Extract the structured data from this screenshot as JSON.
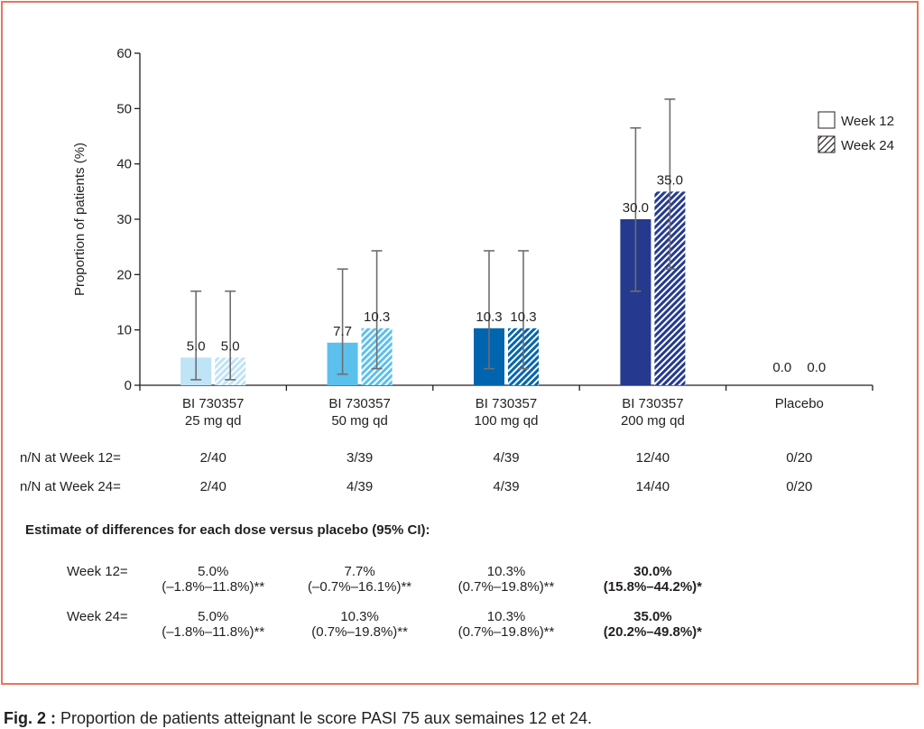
{
  "chart_data": {
    "type": "bar",
    "ylabel": "Proportion of patients (%)",
    "ylim": [
      0,
      60
    ],
    "yticks": [
      0,
      10,
      20,
      30,
      40,
      50,
      60
    ],
    "categories": [
      [
        "BI 730357",
        "25 mg qd"
      ],
      [
        "BI 730357",
        "50 mg qd"
      ],
      [
        "BI 730357",
        "100 mg qd"
      ],
      [
        "BI 730357",
        "200 mg qd"
      ],
      [
        "Placebo",
        ""
      ]
    ],
    "series": [
      {
        "name": "Week 12",
        "pattern": "solid",
        "values": [
          5.0,
          7.7,
          10.3,
          30.0,
          0.0
        ],
        "labels": [
          "5.0",
          "7.7",
          "10.3",
          "30.0",
          "0.0"
        ],
        "ci": [
          [
            1,
            17
          ],
          [
            2,
            21
          ],
          [
            3,
            24.3
          ],
          [
            17,
            46.5
          ],
          null
        ]
      },
      {
        "name": "Week 24",
        "pattern": "hatched",
        "values": [
          5.0,
          10.3,
          10.3,
          35.0,
          0.0
        ],
        "labels": [
          "5.0",
          "10.3",
          "10.3",
          "35.0",
          "0.0"
        ],
        "ci": [
          [
            1,
            17
          ],
          [
            3,
            24.3
          ],
          [
            3,
            24.3
          ],
          [
            21,
            51.7
          ],
          null
        ]
      }
    ],
    "colors": [
      "#bfe3f7",
      "#5cc0ed",
      "#0065ae",
      "#253a8e"
    ],
    "legend_position": "top-right",
    "grid": false
  },
  "table": {
    "rows": [
      {
        "label": "n/N at Week 12=",
        "values": [
          "2/40",
          "3/39",
          "4/39",
          "12/40",
          "0/20"
        ]
      },
      {
        "label": "n/N at Week 24=",
        "values": [
          "2/40",
          "4/39",
          "4/39",
          "14/40",
          "0/20"
        ]
      }
    ]
  },
  "estimates": {
    "title": "Estimate of differences for each dose versus placebo (95% CI):",
    "rows": [
      {
        "label": "Week 12=",
        "cells": [
          {
            "line1": "5.0%",
            "line2": "(–1.8%–11.8%)**",
            "bold": false
          },
          {
            "line1": "7.7%",
            "line2": "(–0.7%–16.1%)**",
            "bold": false
          },
          {
            "line1": "10.3%",
            "line2": "(0.7%–19.8%)**",
            "bold": false
          },
          {
            "line1": "30.0%",
            "line2": "(15.8%–44.2%)*",
            "bold": true
          }
        ]
      },
      {
        "label": "Week 24=",
        "cells": [
          {
            "line1": "5.0%",
            "line2": "(–1.8%–11.8%)**",
            "bold": false
          },
          {
            "line1": "10.3%",
            "line2": "(0.7%–19.8%)**",
            "bold": false
          },
          {
            "line1": "10.3%",
            "line2": "(0.7%–19.8%)**",
            "bold": false
          },
          {
            "line1": "35.0%",
            "line2": "(20.2%–49.8%)*",
            "bold": true
          }
        ]
      }
    ]
  },
  "caption": {
    "label": "Fig. 2 :",
    "text": " Proportion de patients atteignant le score PASI 75 aux semaines 12 et 24."
  },
  "frame_color": "#e8745c"
}
